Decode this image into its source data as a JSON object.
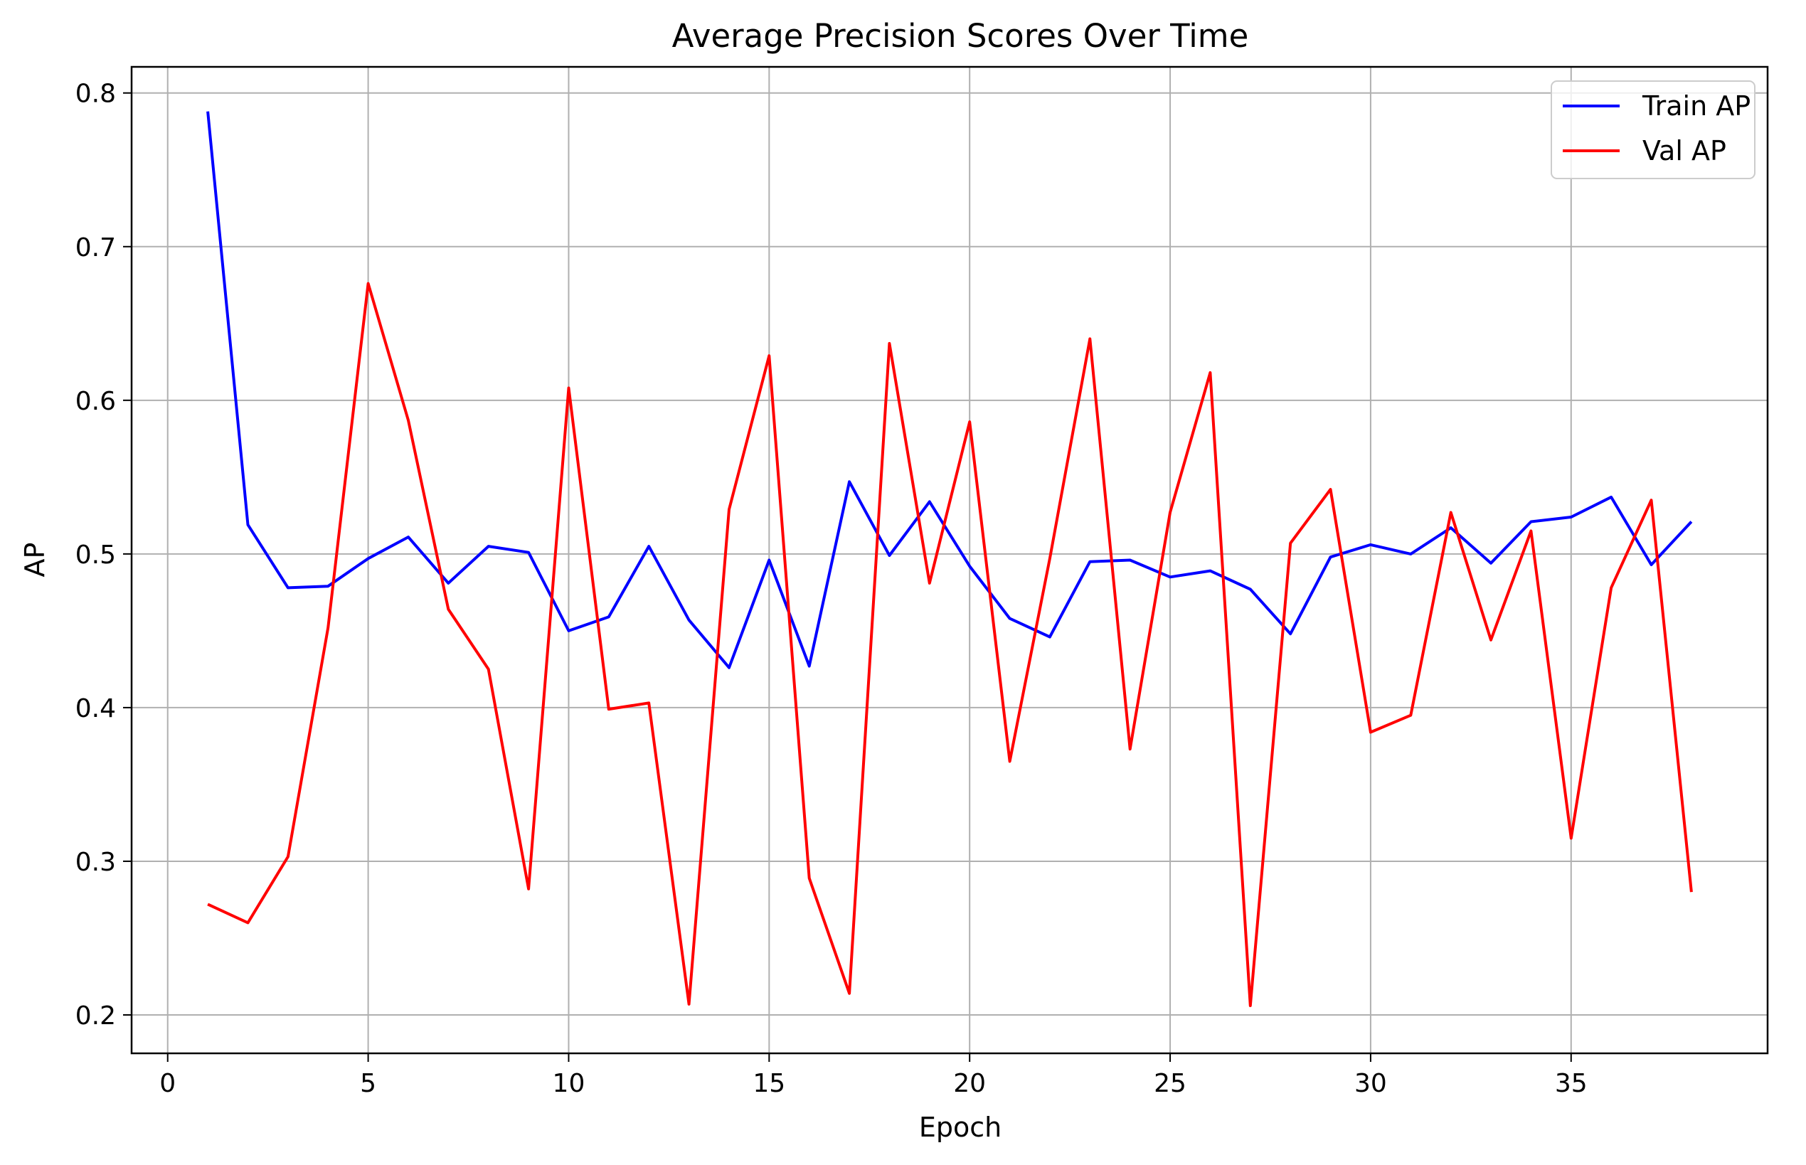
{
  "chart_data": {
    "type": "line",
    "title": "Average Precision Scores Over Time",
    "xlabel": "Epoch",
    "ylabel": "AP",
    "xlim": [
      -0.9,
      39.9
    ],
    "ylim": [
      0.175,
      0.817
    ],
    "xticks": [
      0,
      5,
      10,
      15,
      20,
      25,
      30,
      35
    ],
    "yticks": [
      0.2,
      0.3,
      0.4,
      0.5,
      0.6,
      0.7,
      0.8
    ],
    "grid": true,
    "legend_position": "top-right",
    "x": [
      1,
      2,
      3,
      4,
      5,
      6,
      7,
      8,
      9,
      10,
      11,
      12,
      13,
      14,
      15,
      16,
      17,
      18,
      19,
      20,
      21,
      22,
      23,
      24,
      25,
      26,
      27,
      28,
      29,
      30,
      31,
      32,
      33,
      34,
      35,
      36,
      37,
      38
    ],
    "series": [
      {
        "name": "Train AP",
        "color": "#0000ff",
        "values": [
          0.788,
          0.519,
          0.478,
          0.479,
          0.497,
          0.511,
          0.481,
          0.505,
          0.501,
          0.45,
          0.459,
          0.505,
          0.457,
          0.426,
          0.496,
          0.427,
          0.547,
          0.499,
          0.534,
          0.492,
          0.458,
          0.446,
          0.495,
          0.496,
          0.485,
          0.489,
          0.477,
          0.448,
          0.498,
          0.506,
          0.5,
          0.517,
          0.494,
          0.521,
          0.524,
          0.537,
          0.493,
          0.521
        ]
      },
      {
        "name": "Val AP",
        "color": "#ff0000",
        "values": [
          0.272,
          0.26,
          0.303,
          0.452,
          0.676,
          0.587,
          0.464,
          0.425,
          0.282,
          0.608,
          0.399,
          0.403,
          0.207,
          0.529,
          0.629,
          0.289,
          0.214,
          0.637,
          0.481,
          0.586,
          0.365,
          0.497,
          0.64,
          0.373,
          0.527,
          0.618,
          0.206,
          0.507,
          0.542,
          0.384,
          0.395,
          0.527,
          0.444,
          0.515,
          0.315,
          0.478,
          0.535,
          0.28
        ]
      }
    ]
  }
}
